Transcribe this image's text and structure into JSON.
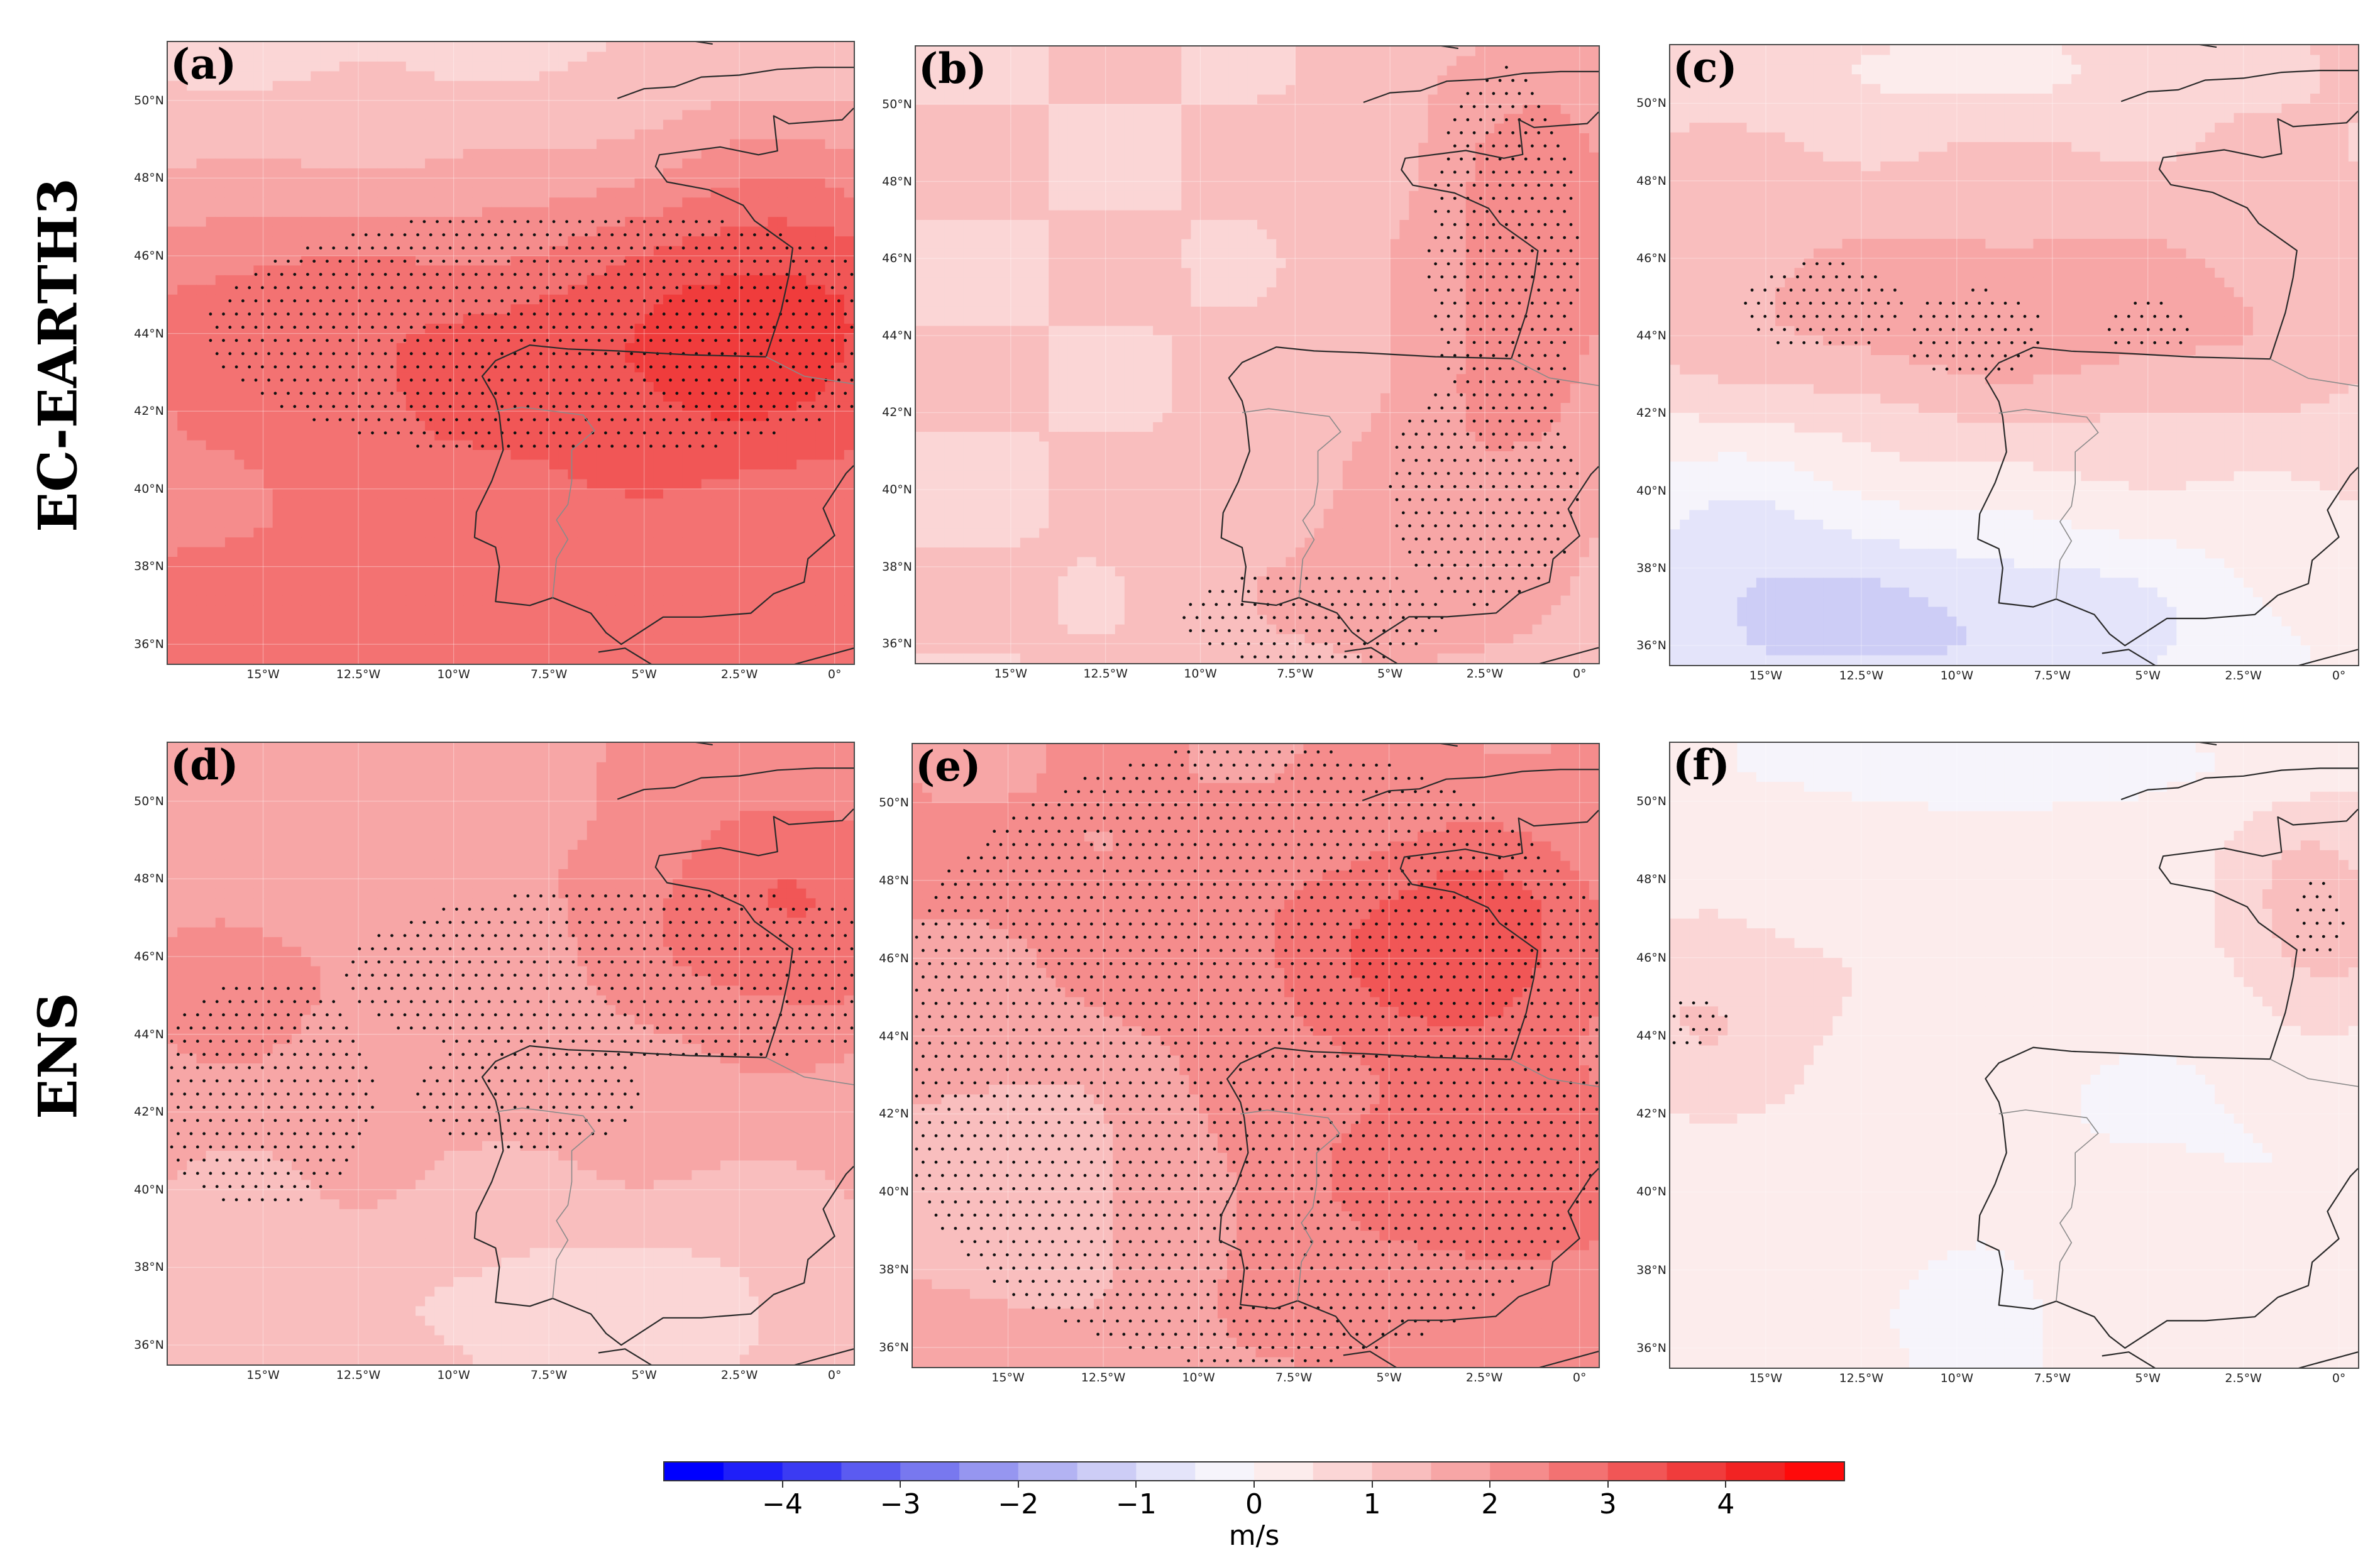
{
  "figure": {
    "rows": [
      {
        "label": "EC-EARTH3",
        "panels": [
          {
            "tag": "(a)",
            "field_id": "a"
          },
          {
            "tag": "(b)",
            "field_id": "b"
          },
          {
            "tag": "(c)",
            "field_id": "c"
          }
        ]
      },
      {
        "label": "ENS",
        "panels": [
          {
            "tag": "(d)",
            "field_id": "d"
          },
          {
            "tag": "(e)",
            "field_id": "e"
          },
          {
            "tag": "(f)",
            "field_id": "f"
          }
        ]
      }
    ]
  },
  "map_axes": {
    "lon_range": [
      -17.5,
      0.5
    ],
    "lat_range": [
      35.5,
      51.5
    ],
    "lat_ticks": [
      "50°N",
      "48°N",
      "46°N",
      "44°N",
      "42°N",
      "40°N",
      "38°N",
      "36°N"
    ],
    "lat_tick_values": [
      50,
      48,
      46,
      44,
      42,
      40,
      38,
      36
    ],
    "lon_ticks": [
      "15°W",
      "12.5°W",
      "10°W",
      "7.5°W",
      "5°W",
      "2.5°W",
      "0°"
    ],
    "lon_tick_values": [
      -15,
      -12.5,
      -10,
      -7.5,
      -5,
      -2.5,
      0
    ]
  },
  "chart_data": {
    "type": "heatmap",
    "variable_unit": "m/s",
    "value_range": [
      -5,
      5
    ],
    "fields": {
      "a": {
        "base": 1.8,
        "blobs": [
          {
            "lon": -6,
            "lat": 43.5,
            "amp": 1.5,
            "sx": 7,
            "sy": 2.8
          },
          {
            "lon": -1,
            "lat": 46,
            "amp": 1.1,
            "sx": 3,
            "sy": 3
          },
          {
            "lon": -16,
            "lat": 45,
            "amp": 0.6,
            "sx": 3,
            "sy": 2
          }
        ],
        "lat_gradient": -0.12,
        "stipple": [
          {
            "lon": -7,
            "lat": 44,
            "rx": 9.5,
            "ry": 3.2
          }
        ]
      },
      "b": {
        "base": 1.0,
        "blobs": [
          {
            "lon": -1,
            "lat": 47,
            "amp": 1.3,
            "sx": 2.5,
            "sy": 4
          },
          {
            "lon": -3,
            "lat": 40,
            "amp": 0.7,
            "sx": 3,
            "sy": 3
          },
          {
            "lon": -6,
            "lat": 37,
            "amp": 0.5,
            "sx": 3,
            "sy": 1.5
          }
        ],
        "lat_gradient": 0.0,
        "stipple": [
          {
            "lon": -2,
            "lat": 46,
            "rx": 2,
            "ry": 5
          },
          {
            "lon": -2.5,
            "lat": 40,
            "rx": 2.5,
            "ry": 3
          },
          {
            "lon": -7,
            "lat": 36.7,
            "rx": 3.5,
            "ry": 1.3
          }
        ]
      },
      "c": {
        "base": 0.7,
        "blobs": [
          {
            "lon": -9,
            "lat": 44.5,
            "amp": 1.1,
            "sx": 8,
            "sy": 2
          },
          {
            "lon": -9,
            "lat": 36.5,
            "amp": -1.3,
            "sx": 5,
            "sy": 2
          },
          {
            "lon": -16,
            "lat": 38,
            "amp": -1.0,
            "sx": 3,
            "sy": 3
          },
          {
            "lon": -10,
            "lat": 51,
            "amp": -0.8,
            "sx": 4,
            "sy": 1
          }
        ],
        "lat_gradient": 0.05,
        "stipple": [
          {
            "lon": -13.5,
            "lat": 44.7,
            "rx": 2.2,
            "ry": 1.2
          },
          {
            "lon": -9.5,
            "lat": 44,
            "rx": 1.8,
            "ry": 1.2
          },
          {
            "lon": -5,
            "lat": 44.2,
            "rx": 1.3,
            "ry": 0.7
          }
        ]
      },
      "d": {
        "base": 1.6,
        "blobs": [
          {
            "lon": -1,
            "lat": 47,
            "amp": 1.3,
            "sx": 3.5,
            "sy": 2.5
          },
          {
            "lon": -16,
            "lat": 45,
            "amp": 0.7,
            "sx": 2,
            "sy": 1.5
          },
          {
            "lon": -6,
            "lat": 37,
            "amp": -0.8,
            "sx": 4,
            "sy": 1.5
          }
        ],
        "lat_gradient": 0.03,
        "stipple": [
          {
            "lon": -5,
            "lat": 45.5,
            "rx": 8,
            "ry": 2.3
          },
          {
            "lon": -15,
            "lat": 42.5,
            "rx": 3,
            "ry": 3
          },
          {
            "lon": -8,
            "lat": 42.5,
            "rx": 3,
            "ry": 1.5
          }
        ]
      },
      "e": {
        "base": 2.0,
        "blobs": [
          {
            "lon": -3,
            "lat": 46.5,
            "amp": 1.2,
            "sx": 2.5,
            "sy": 2
          },
          {
            "lon": -2,
            "lat": 40.5,
            "amp": 0.9,
            "sx": 4,
            "sy": 2
          },
          {
            "lon": -7,
            "lat": 46,
            "amp": 0.4,
            "sx": 5,
            "sy": 2
          },
          {
            "lon": -15,
            "lat": 40,
            "amp": -0.9,
            "sx": 3,
            "sy": 3
          }
        ],
        "lat_gradient": 0.0,
        "stipple": [
          {
            "lon": -8.5,
            "lat": 43.5,
            "rx": 10,
            "ry": 8
          }
        ]
      },
      "f": {
        "base": 0.35,
        "blobs": [
          {
            "lon": -0.5,
            "lat": 47,
            "amp": 1.0,
            "sx": 1.5,
            "sy": 2
          },
          {
            "lon": -16.5,
            "lat": 44.5,
            "amp": 0.7,
            "sx": 2,
            "sy": 1.5
          },
          {
            "lon": -9,
            "lat": 51,
            "amp": -0.7,
            "sx": 5,
            "sy": 1
          },
          {
            "lon": -9.5,
            "lat": 36.5,
            "amp": -0.8,
            "sx": 1.5,
            "sy": 1.5
          },
          {
            "lon": -4,
            "lat": 42,
            "amp": -0.4,
            "sx": 5,
            "sy": 2
          }
        ],
        "lat_gradient": 0.0,
        "stipple": [
          {
            "lon": -0.5,
            "lat": 47,
            "rx": 0.7,
            "ry": 1.1
          },
          {
            "lon": -17,
            "lat": 44.4,
            "rx": 1,
            "ry": 0.7
          }
        ]
      }
    },
    "colorbar": {
      "bounds": [
        -5,
        -4.5,
        -4,
        -3.5,
        -3,
        -2.5,
        -2,
        -1.5,
        -1,
        -0.5,
        0,
        0.5,
        1,
        1.5,
        2,
        2.5,
        3,
        3.5,
        4,
        4.5,
        5
      ],
      "colors": [
        "#0000ff",
        "#1f1ff9",
        "#3b3bf3",
        "#5b5bf1",
        "#7878ef",
        "#9696f0",
        "#b3b3f3",
        "#cdcdf6",
        "#e4e4fa",
        "#f6f4fb",
        "#fcecec",
        "#fbd6d6",
        "#f9bebe",
        "#f7a6a6",
        "#f58c8c",
        "#f37272",
        "#f15656",
        "#f03c3c",
        "#f22323",
        "#ff0a0a"
      ],
      "tick_values": [
        -4,
        -3,
        -2,
        -1,
        0,
        1,
        2,
        3,
        4
      ],
      "tick_labels": [
        "−4",
        "−3",
        "−2",
        "−1",
        "0",
        "1",
        "2",
        "3",
        "4"
      ],
      "label": "m/s"
    }
  },
  "geography": {
    "coast_iberia": [
      [
        -1.8,
        43.4
      ],
      [
        -3.8,
        43.45
      ],
      [
        -5.7,
        43.55
      ],
      [
        -7.0,
        43.6
      ],
      [
        -8.0,
        43.7
      ],
      [
        -8.9,
        43.3
      ],
      [
        -9.25,
        42.9
      ],
      [
        -8.9,
        42.3
      ],
      [
        -8.8,
        41.9
      ],
      [
        -8.7,
        41.0
      ],
      [
        -9.0,
        40.2
      ],
      [
        -9.4,
        39.4
      ],
      [
        -9.45,
        38.75
      ],
      [
        -8.9,
        38.5
      ],
      [
        -8.8,
        38.0
      ],
      [
        -8.9,
        37.1
      ],
      [
        -8.0,
        37.0
      ],
      [
        -7.4,
        37.2
      ],
      [
        -6.4,
        36.8
      ],
      [
        -6.0,
        36.3
      ],
      [
        -5.6,
        36.0
      ],
      [
        -4.5,
        36.7
      ],
      [
        -3.5,
        36.7
      ],
      [
        -2.2,
        36.8
      ],
      [
        -1.6,
        37.3
      ],
      [
        -0.8,
        37.6
      ],
      [
        -0.7,
        38.2
      ],
      [
        0.0,
        38.8
      ],
      [
        -0.3,
        39.5
      ],
      [
        0.3,
        40.4
      ],
      [
        0.5,
        40.6
      ]
    ],
    "coast_france": [
      [
        -1.8,
        43.4
      ],
      [
        -1.4,
        44.6
      ],
      [
        -1.2,
        45.5
      ],
      [
        -1.1,
        46.2
      ],
      [
        -2.1,
        46.9
      ],
      [
        -2.4,
        47.3
      ],
      [
        -3.3,
        47.7
      ],
      [
        -4.4,
        47.9
      ],
      [
        -4.7,
        48.3
      ],
      [
        -4.6,
        48.6
      ],
      [
        -3.0,
        48.8
      ],
      [
        -2.0,
        48.6
      ],
      [
        -1.5,
        48.7
      ],
      [
        -1.6,
        49.6
      ],
      [
        -1.2,
        49.4
      ],
      [
        0.2,
        49.5
      ],
      [
        0.5,
        49.8
      ]
    ],
    "coast_britain": [
      [
        -5.7,
        50.05
      ],
      [
        -5.0,
        50.3
      ],
      [
        -4.2,
        50.35
      ],
      [
        -3.5,
        50.6
      ],
      [
        -2.5,
        50.65
      ],
      [
        -1.5,
        50.8
      ],
      [
        -0.5,
        50.85
      ],
      [
        0.5,
        50.85
      ]
    ],
    "coast_africa": [
      [
        -6.2,
        35.8
      ],
      [
        -5.5,
        35.9
      ],
      [
        -4.5,
        35.3
      ],
      [
        -3.0,
        35.3
      ],
      [
        -2.0,
        35.2
      ],
      [
        -1.0,
        35.5
      ],
      [
        0.5,
        35.9
      ]
    ],
    "coast_wales": [
      [
        -5.2,
        51.7
      ],
      [
        -4.2,
        51.6
      ],
      [
        -3.2,
        51.45
      ]
    ],
    "border_pyrenees": [
      [
        -1.8,
        43.4
      ],
      [
        -0.8,
        42.9
      ],
      [
        0.5,
        42.7
      ]
    ],
    "border_portugal": [
      [
        -8.9,
        42.0
      ],
      [
        -8.2,
        42.1
      ],
      [
        -6.6,
        41.9
      ],
      [
        -6.3,
        41.5
      ],
      [
        -6.9,
        41.0
      ],
      [
        -6.9,
        40.2
      ],
      [
        -7.0,
        39.6
      ],
      [
        -7.3,
        39.2
      ],
      [
        -7.0,
        38.7
      ],
      [
        -7.3,
        38.2
      ],
      [
        -7.4,
        37.2
      ]
    ]
  }
}
